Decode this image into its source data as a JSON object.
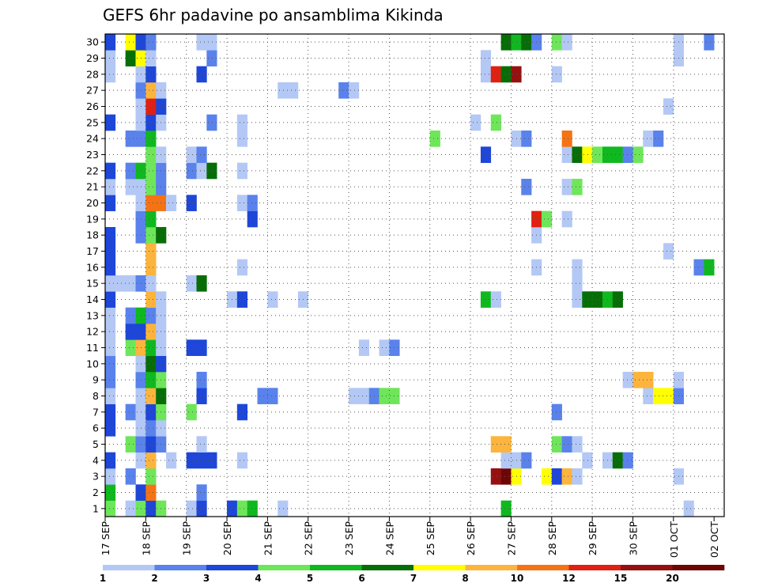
{
  "chart_data": {
    "type": "heatmap",
    "title": "GEFS 6hr padavine po ansamblima Kikinda",
    "xlabel": "",
    "ylabel": "",
    "x_tick_labels": [
      "17 SEP",
      "18 SEP",
      "19 SEP",
      "20 SEP",
      "21 SEP",
      "22 SEP",
      "23 SEP",
      "24 SEP",
      "25 SEP",
      "26 SEP",
      "27 SEP",
      "28 SEP",
      "29 SEP",
      "30 SEP",
      "01 OCT",
      "02 OCT"
    ],
    "y_tick_labels": [
      "1",
      "2",
      "3",
      "4",
      "5",
      "6",
      "7",
      "8",
      "9",
      "10",
      "11",
      "12",
      "13",
      "14",
      "15",
      "16",
      "17",
      "18",
      "19",
      "20",
      "21",
      "22",
      "23",
      "24",
      "25",
      "26",
      "27",
      "28",
      "29",
      "30"
    ],
    "time_steps_per_day": 4,
    "n_time_steps": 61,
    "members": 30,
    "grid": "dotted",
    "colorbar": {
      "placement": "bottom",
      "tick_labels": [
        "1",
        "2",
        "3",
        "4",
        "5",
        "6",
        "7",
        "8",
        "10",
        "12",
        "15",
        "20"
      ],
      "colors": [
        "#b4c8f5",
        "#5a82ec",
        "#1e46d8",
        "#6ee65a",
        "#10b820",
        "#076e07",
        "#ffff00",
        "#fcb43c",
        "#f57314",
        "#e02010",
        "#961010",
        "#6e0606"
      ]
    },
    "cells": [
      [
        1,
        0,
        3
      ],
      [
        1,
        2,
        0
      ],
      [
        1,
        3,
        3
      ],
      [
        1,
        4,
        2
      ],
      [
        1,
        5,
        3
      ],
      [
        1,
        8,
        0
      ],
      [
        1,
        9,
        2
      ],
      [
        1,
        12,
        2
      ],
      [
        1,
        13,
        3
      ],
      [
        1,
        14,
        4
      ],
      [
        1,
        17,
        0
      ],
      [
        1,
        39,
        4
      ],
      [
        1,
        57,
        0
      ],
      [
        2,
        0,
        4
      ],
      [
        2,
        3,
        2
      ],
      [
        2,
        4,
        8
      ],
      [
        2,
        9,
        1
      ],
      [
        3,
        0,
        0
      ],
      [
        3,
        2,
        1
      ],
      [
        3,
        4,
        3
      ],
      [
        3,
        38,
        10
      ],
      [
        3,
        39,
        11
      ],
      [
        3,
        40,
        6
      ],
      [
        3,
        43,
        6
      ],
      [
        3,
        44,
        2
      ],
      [
        3,
        45,
        7
      ],
      [
        3,
        46,
        0
      ],
      [
        3,
        56,
        0
      ],
      [
        4,
        0,
        2
      ],
      [
        4,
        3,
        0
      ],
      [
        4,
        4,
        7
      ],
      [
        4,
        6,
        0
      ],
      [
        4,
        8,
        2
      ],
      [
        4,
        9,
        2
      ],
      [
        4,
        10,
        2
      ],
      [
        4,
        13,
        0
      ],
      [
        4,
        39,
        0
      ],
      [
        4,
        40,
        0
      ],
      [
        4,
        41,
        1
      ],
      [
        4,
        47,
        0
      ],
      [
        4,
        49,
        0
      ],
      [
        4,
        50,
        5
      ],
      [
        4,
        51,
        1
      ],
      [
        5,
        2,
        3
      ],
      [
        5,
        3,
        1
      ],
      [
        5,
        4,
        2
      ],
      [
        5,
        5,
        1
      ],
      [
        5,
        9,
        0
      ],
      [
        5,
        38,
        7
      ],
      [
        5,
        39,
        7
      ],
      [
        5,
        44,
        3
      ],
      [
        5,
        45,
        1
      ],
      [
        5,
        46,
        0
      ],
      [
        6,
        0,
        2
      ],
      [
        6,
        3,
        0
      ],
      [
        6,
        4,
        1
      ],
      [
        6,
        5,
        0
      ],
      [
        7,
        0,
        2
      ],
      [
        7,
        2,
        1
      ],
      [
        7,
        3,
        0
      ],
      [
        7,
        4,
        2
      ],
      [
        7,
        5,
        3
      ],
      [
        7,
        8,
        3
      ],
      [
        7,
        13,
        2
      ],
      [
        7,
        44,
        1
      ],
      [
        8,
        0,
        0
      ],
      [
        8,
        3,
        0
      ],
      [
        8,
        4,
        7
      ],
      [
        8,
        5,
        5
      ],
      [
        8,
        9,
        2
      ],
      [
        8,
        15,
        1
      ],
      [
        8,
        16,
        1
      ],
      [
        8,
        24,
        0
      ],
      [
        8,
        25,
        0
      ],
      [
        8,
        26,
        1
      ],
      [
        8,
        27,
        3
      ],
      [
        8,
        28,
        3
      ],
      [
        8,
        53,
        0
      ],
      [
        8,
        54,
        6
      ],
      [
        8,
        55,
        6
      ],
      [
        8,
        56,
        1
      ],
      [
        9,
        0,
        1
      ],
      [
        9,
        3,
        1
      ],
      [
        9,
        4,
        4
      ],
      [
        9,
        5,
        3
      ],
      [
        9,
        9,
        1
      ],
      [
        9,
        51,
        0
      ],
      [
        9,
        52,
        7
      ],
      [
        9,
        53,
        7
      ],
      [
        9,
        56,
        0
      ],
      [
        10,
        0,
        1
      ],
      [
        10,
        3,
        0
      ],
      [
        10,
        4,
        5
      ],
      [
        10,
        5,
        2
      ],
      [
        11,
        0,
        0
      ],
      [
        11,
        2,
        3
      ],
      [
        11,
        3,
        7
      ],
      [
        11,
        4,
        4
      ],
      [
        11,
        5,
        0
      ],
      [
        11,
        8,
        2
      ],
      [
        11,
        9,
        2
      ],
      [
        11,
        25,
        0
      ],
      [
        11,
        27,
        0
      ],
      [
        11,
        28,
        1
      ],
      [
        12,
        0,
        0
      ],
      [
        12,
        2,
        2
      ],
      [
        12,
        3,
        2
      ],
      [
        12,
        4,
        7
      ],
      [
        12,
        5,
        0
      ],
      [
        13,
        0,
        0
      ],
      [
        13,
        2,
        1
      ],
      [
        13,
        3,
        4
      ],
      [
        13,
        4,
        1
      ],
      [
        13,
        5,
        0
      ],
      [
        14,
        0,
        2
      ],
      [
        14,
        4,
        7
      ],
      [
        14,
        5,
        0
      ],
      [
        14,
        12,
        0
      ],
      [
        14,
        13,
        2
      ],
      [
        14,
        16,
        0
      ],
      [
        14,
        19,
        0
      ],
      [
        14,
        37,
        4
      ],
      [
        14,
        38,
        0
      ],
      [
        14,
        46,
        0
      ],
      [
        14,
        47,
        5
      ],
      [
        14,
        48,
        5
      ],
      [
        14,
        49,
        4
      ],
      [
        14,
        50,
        5
      ],
      [
        15,
        0,
        0
      ],
      [
        15,
        1,
        0
      ],
      [
        15,
        2,
        0
      ],
      [
        15,
        3,
        1
      ],
      [
        15,
        4,
        0
      ],
      [
        15,
        8,
        0
      ],
      [
        15,
        9,
        5
      ],
      [
        15,
        46,
        0
      ],
      [
        16,
        0,
        2
      ],
      [
        16,
        4,
        7
      ],
      [
        16,
        13,
        0
      ],
      [
        16,
        42,
        0
      ],
      [
        16,
        46,
        0
      ],
      [
        16,
        58,
        1
      ],
      [
        16,
        59,
        4
      ],
      [
        17,
        0,
        2
      ],
      [
        17,
        4,
        7
      ],
      [
        17,
        55,
        0
      ],
      [
        18,
        0,
        2
      ],
      [
        18,
        3,
        1
      ],
      [
        18,
        4,
        3
      ],
      [
        18,
        5,
        5
      ],
      [
        18,
        42,
        0
      ],
      [
        19,
        3,
        1
      ],
      [
        19,
        4,
        4
      ],
      [
        19,
        14,
        2
      ],
      [
        19,
        42,
        9
      ],
      [
        19,
        43,
        3
      ],
      [
        19,
        45,
        0
      ],
      [
        20,
        0,
        2
      ],
      [
        20,
        3,
        0
      ],
      [
        20,
        4,
        8
      ],
      [
        20,
        5,
        8
      ],
      [
        20,
        6,
        0
      ],
      [
        20,
        8,
        2
      ],
      [
        20,
        13,
        0
      ],
      [
        20,
        14,
        1
      ],
      [
        21,
        0,
        0
      ],
      [
        21,
        2,
        0
      ],
      [
        21,
        3,
        0
      ],
      [
        21,
        4,
        3
      ],
      [
        21,
        5,
        1
      ],
      [
        21,
        41,
        1
      ],
      [
        21,
        45,
        0
      ],
      [
        21,
        46,
        3
      ],
      [
        22,
        0,
        2
      ],
      [
        22,
        2,
        1
      ],
      [
        22,
        3,
        4
      ],
      [
        22,
        4,
        3
      ],
      [
        22,
        5,
        1
      ],
      [
        22,
        8,
        1
      ],
      [
        22,
        9,
        0
      ],
      [
        22,
        10,
        5
      ],
      [
        22,
        13,
        0
      ],
      [
        23,
        4,
        3
      ],
      [
        23,
        5,
        0
      ],
      [
        23,
        8,
        0
      ],
      [
        23,
        9,
        1
      ],
      [
        23,
        37,
        2
      ],
      [
        23,
        45,
        0
      ],
      [
        23,
        46,
        5
      ],
      [
        23,
        47,
        6
      ],
      [
        23,
        48,
        3
      ],
      [
        23,
        49,
        4
      ],
      [
        23,
        50,
        4
      ],
      [
        23,
        51,
        1
      ],
      [
        23,
        52,
        3
      ],
      [
        24,
        2,
        1
      ],
      [
        24,
        3,
        1
      ],
      [
        24,
        4,
        4
      ],
      [
        24,
        13,
        0
      ],
      [
        24,
        32,
        3
      ],
      [
        24,
        40,
        0
      ],
      [
        24,
        41,
        1
      ],
      [
        24,
        45,
        8
      ],
      [
        24,
        53,
        0
      ],
      [
        24,
        54,
        1
      ],
      [
        25,
        0,
        2
      ],
      [
        25,
        3,
        0
      ],
      [
        25,
        4,
        2
      ],
      [
        25,
        5,
        0
      ],
      [
        25,
        10,
        1
      ],
      [
        25,
        13,
        0
      ],
      [
        25,
        36,
        0
      ],
      [
        25,
        38,
        3
      ],
      [
        26,
        3,
        0
      ],
      [
        26,
        4,
        9
      ],
      [
        26,
        5,
        2
      ],
      [
        26,
        55,
        0
      ],
      [
        27,
        3,
        1
      ],
      [
        27,
        4,
        7
      ],
      [
        27,
        5,
        0
      ],
      [
        27,
        17,
        0
      ],
      [
        27,
        18,
        0
      ],
      [
        27,
        23,
        1
      ],
      [
        27,
        24,
        0
      ],
      [
        28,
        0,
        0
      ],
      [
        28,
        3,
        0
      ],
      [
        28,
        4,
        2
      ],
      [
        28,
        9,
        2
      ],
      [
        28,
        37,
        0
      ],
      [
        28,
        38,
        9
      ],
      [
        28,
        39,
        5
      ],
      [
        28,
        40,
        10
      ],
      [
        28,
        44,
        0
      ],
      [
        29,
        0,
        0
      ],
      [
        29,
        2,
        5
      ],
      [
        29,
        3,
        6
      ],
      [
        29,
        4,
        0
      ],
      [
        29,
        10,
        1
      ],
      [
        29,
        37,
        0
      ],
      [
        29,
        56,
        0
      ],
      [
        30,
        0,
        2
      ],
      [
        30,
        2,
        6
      ],
      [
        30,
        3,
        2
      ],
      [
        30,
        4,
        1
      ],
      [
        30,
        9,
        0
      ],
      [
        30,
        10,
        0
      ],
      [
        30,
        39,
        5
      ],
      [
        30,
        40,
        4
      ],
      [
        30,
        41,
        5
      ],
      [
        30,
        42,
        1
      ],
      [
        30,
        44,
        3
      ],
      [
        30,
        45,
        0
      ],
      [
        30,
        56,
        0
      ],
      [
        30,
        59,
        1
      ]
    ]
  }
}
